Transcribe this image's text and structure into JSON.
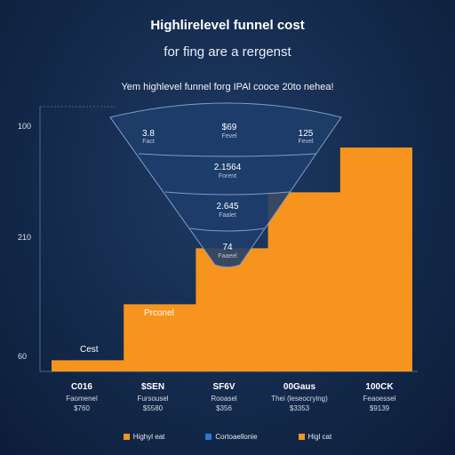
{
  "colors": {
    "bar": "#f7941d",
    "funnel": "#1e3e6b",
    "funnel_stroke": "#7f9cc8",
    "blue": "#2a78d6"
  },
  "header": {
    "title": "Highlirelevel funnel cost",
    "subtitle": "for fing are a rergenst",
    "caption": "Yem highlevel funnel forg IPAl cooce 20to nehea!"
  },
  "chart_data": {
    "type": "area",
    "title": "Highlirelevel funnel cost",
    "y_ticks": [
      "100",
      "210",
      "60"
    ],
    "step_values": [
      5,
      5,
      30,
      30,
      55,
      55,
      80,
      80,
      100,
      100
    ],
    "y_max": 100,
    "bar_labels": [
      "Cest",
      "Prconel"
    ],
    "categories": [
      {
        "name": "C016",
        "sub": "Faomenel",
        "value": "$760"
      },
      {
        "name": "$SEN",
        "sub": "Fursousel",
        "value": "$5580"
      },
      {
        "name": "SF6V",
        "sub": "Rooasel",
        "value": "$356"
      },
      {
        "name": "00Gaus",
        "sub": "Thei (leseocrying)",
        "value": "$3353"
      },
      {
        "name": "100CK",
        "sub": "Feaoessel",
        "value": "$9139"
      }
    ],
    "funnel": {
      "top_row": [
        {
          "value": "3.8",
          "sub": "Fact"
        },
        {
          "value": "$69",
          "sub": "Fevel"
        },
        {
          "value": "125",
          "sub": "Fevel"
        }
      ],
      "stages": [
        {
          "value": "2.1564",
          "sub": "Forent"
        },
        {
          "value": "2.645",
          "sub": "Faalet"
        },
        {
          "value": "74",
          "sub": "Faaeel"
        }
      ]
    },
    "legend": [
      {
        "label": "Highyl eat",
        "color": "#f7941d"
      },
      {
        "label": "Cortoaellonie",
        "color": "#2a78d6"
      },
      {
        "label": "Higl cat",
        "color": "#f7941d"
      }
    ]
  }
}
